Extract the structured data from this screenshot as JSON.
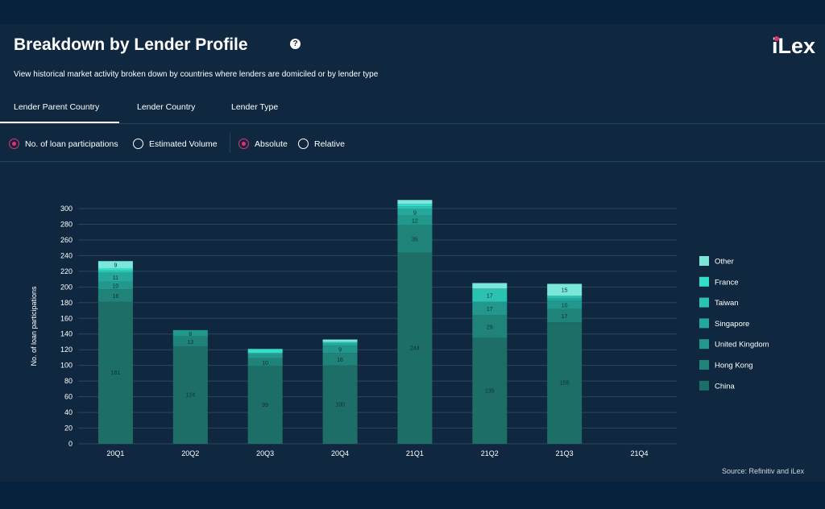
{
  "header": {
    "title": "Breakdown by Lender Profile",
    "help_icon": "?",
    "logo": "iLex",
    "subtitle": "View historical market activity broken down by countries where lenders are domiciled or by lender type"
  },
  "tabs": [
    {
      "label": "Lender Parent Country",
      "active": true
    },
    {
      "label": "Lender Country",
      "active": false
    },
    {
      "label": "Lender Type",
      "active": false
    }
  ],
  "options": {
    "metric": [
      {
        "label": "No. of loan participations",
        "selected": true
      },
      {
        "label": "Estimated Volume",
        "selected": false
      }
    ],
    "mode": [
      {
        "label": "Absolute",
        "selected": true
      },
      {
        "label": "Relative",
        "selected": false
      }
    ]
  },
  "source": "Source: Refinitiv and iLex",
  "chart_data": {
    "type": "bar",
    "stacked": true,
    "categories": [
      "20Q1",
      "20Q2",
      "20Q3",
      "20Q4",
      "21Q1",
      "21Q2",
      "21Q3",
      "21Q4"
    ],
    "ylabel": "No. of loan participations",
    "ylim": [
      0,
      300
    ],
    "yticks": [
      0,
      20,
      40,
      60,
      80,
      100,
      120,
      140,
      160,
      180,
      200,
      220,
      240,
      260,
      280,
      300
    ],
    "legend_position": "right",
    "series": [
      {
        "name": "China",
        "color": "#1d6e66",
        "values": [
          181,
          124,
          99,
          100,
          244,
          135,
          155,
          0
        ]
      },
      {
        "name": "Hong Kong",
        "color": "#20837a",
        "values": [
          16,
          13,
          10,
          16,
          35,
          29,
          17,
          0
        ]
      },
      {
        "name": "United Kingdom",
        "color": "#22978c",
        "values": [
          10,
          8,
          5,
          9,
          12,
          17,
          10,
          0
        ]
      },
      {
        "name": "Singapore",
        "color": "#25a89b",
        "values": [
          11,
          0,
          2,
          3,
          9,
          0,
          4,
          0
        ]
      },
      {
        "name": "Taiwan",
        "color": "#2bc2b2",
        "values": [
          3,
          0,
          0,
          2,
          3,
          17,
          3,
          0
        ]
      },
      {
        "name": "France",
        "color": "#33ddc9",
        "values": [
          3,
          0,
          5,
          0,
          3,
          0,
          0,
          0
        ]
      },
      {
        "name": "Other",
        "color": "#7be6da",
        "values": [
          9,
          0,
          0,
          3,
          5,
          7,
          15,
          0
        ]
      }
    ]
  }
}
